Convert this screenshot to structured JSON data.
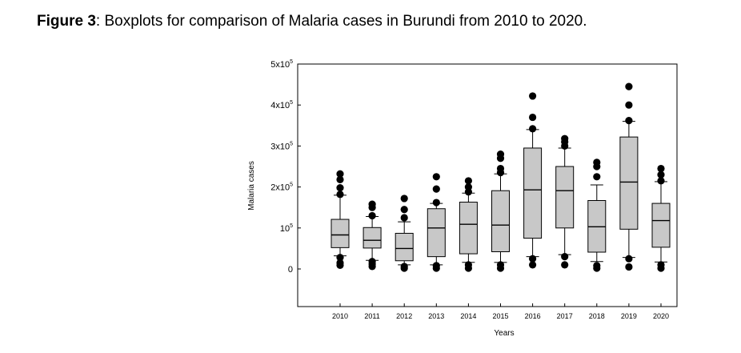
{
  "caption": {
    "label": "Figure 3",
    "separator": ":",
    "text": " Boxplots for comparison of Malaria cases in Burundi from 2010 to 2020."
  },
  "chart_data": {
    "type": "boxplot",
    "title": "",
    "xlabel": "Years",
    "ylabel": "Malaria cases",
    "ylim": [
      -90000,
      500000
    ],
    "y_ticks": [
      {
        "value": 0,
        "base": "0",
        "exp": ""
      },
      {
        "value": 100000,
        "base": "10",
        "exp": "5"
      },
      {
        "value": 200000,
        "base": "2x10",
        "exp": "5"
      },
      {
        "value": 300000,
        "base": "3x10",
        "exp": "5"
      },
      {
        "value": 400000,
        "base": "4x10",
        "exp": "5"
      },
      {
        "value": 500000,
        "base": "5x10",
        "exp": "5"
      }
    ],
    "categories": [
      "2010",
      "2011",
      "2012",
      "2013",
      "2014",
      "2015",
      "2016",
      "2017",
      "2018",
      "2019",
      "2020"
    ],
    "boxes": [
      {
        "year": "2010",
        "whisker_low": 32000,
        "q1": 52000,
        "median": 83000,
        "q3": 121000,
        "whisker_high": 180000,
        "outliers": [
          9000,
          15000,
          28000,
          182000,
          198000,
          218000,
          232000
        ]
      },
      {
        "year": "2011",
        "whisker_low": 21000,
        "q1": 51000,
        "median": 70000,
        "q3": 101000,
        "whisker_high": 128000,
        "outliers": [
          6000,
          12000,
          18000,
          130000,
          150000,
          158000
        ]
      },
      {
        "year": "2012",
        "whisker_low": 10000,
        "q1": 20000,
        "median": 50000,
        "q3": 87000,
        "whisker_high": 115000,
        "outliers": [
          2000,
          6000,
          125000,
          145000,
          172000
        ]
      },
      {
        "year": "2013",
        "whisker_low": 10000,
        "q1": 30000,
        "median": 100000,
        "q3": 147000,
        "whisker_high": 160000,
        "outliers": [
          2000,
          8000,
          162000,
          195000,
          225000
        ]
      },
      {
        "year": "2014",
        "whisker_low": 16000,
        "q1": 37000,
        "median": 109000,
        "q3": 163000,
        "whisker_high": 185000,
        "outliers": [
          2000,
          10000,
          188000,
          200000,
          215000
        ]
      },
      {
        "year": "2015",
        "whisker_low": 16000,
        "q1": 42000,
        "median": 107000,
        "q3": 191000,
        "whisker_high": 232000,
        "outliers": [
          2000,
          10000,
          235000,
          245000,
          270000,
          280000
        ]
      },
      {
        "year": "2016",
        "whisker_low": 30000,
        "q1": 75000,
        "median": 193000,
        "q3": 295000,
        "whisker_high": 340000,
        "outliers": [
          10000,
          25000,
          342000,
          370000,
          422000
        ]
      },
      {
        "year": "2017",
        "whisker_low": 35000,
        "q1": 100000,
        "median": 191000,
        "q3": 250000,
        "whisker_high": 295000,
        "outliers": [
          10000,
          30000,
          300000,
          310000,
          318000
        ]
      },
      {
        "year": "2018",
        "whisker_low": 18000,
        "q1": 41000,
        "median": 103000,
        "q3": 167000,
        "whisker_high": 205000,
        "outliers": [
          2000,
          8000,
          225000,
          250000,
          260000
        ]
      },
      {
        "year": "2019",
        "whisker_low": 28000,
        "q1": 97000,
        "median": 212000,
        "q3": 322000,
        "whisker_high": 360000,
        "outliers": [
          5000,
          25000,
          362000,
          400000,
          445000
        ]
      },
      {
        "year": "2020",
        "whisker_low": 17000,
        "q1": 53000,
        "median": 118000,
        "q3": 160000,
        "whisker_high": 213000,
        "outliers": [
          2000,
          10000,
          215000,
          230000,
          245000
        ]
      }
    ],
    "colors": {
      "box_fill": "#c8c8c8",
      "stroke": "#000000",
      "outlier": "#000000",
      "background": "#ffffff"
    }
  }
}
